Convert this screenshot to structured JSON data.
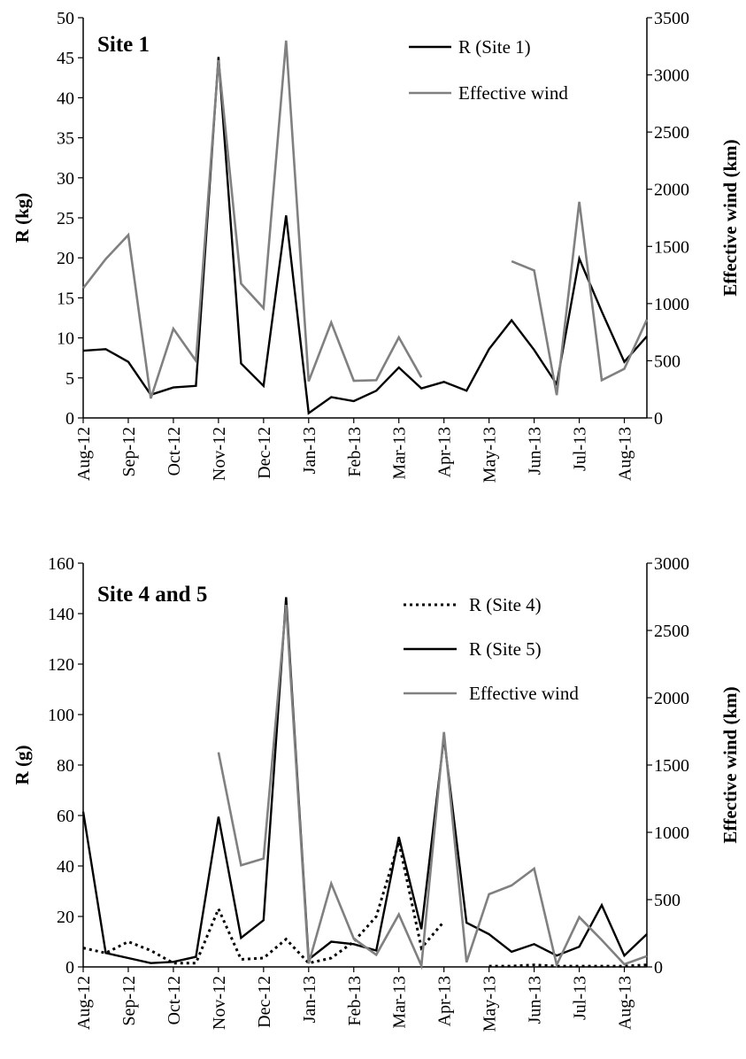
{
  "chart_data": [
    {
      "type": "line",
      "title": "Site 1",
      "ylabel": "R (kg)",
      "y2label": "Effective wind (km)",
      "ylim": [
        0,
        50
      ],
      "y2lim": [
        0,
        3500
      ],
      "yticks": [
        0,
        5,
        10,
        15,
        20,
        25,
        30,
        35,
        40,
        45,
        50
      ],
      "y2ticks": [
        0,
        500,
        1000,
        1500,
        2000,
        2500,
        3000,
        3500
      ],
      "x_tick_labels": [
        "Aug-12",
        "Sep-12",
        "Oct-12",
        "Nov-12",
        "Dec-12",
        "Jan-13",
        "Feb-13",
        "Mar-13",
        "Apr-13",
        "May-13",
        "Jun-13",
        "Jul-13",
        "Aug-13"
      ],
      "x_domain": [
        0,
        25
      ],
      "grid": false,
      "legend_position": "top-right",
      "series": [
        {
          "name": "R (Site 1)",
          "axis": "left",
          "color": "#000000",
          "dash": "solid",
          "x": [
            0,
            1,
            2,
            3,
            4,
            5,
            6,
            7,
            8,
            9,
            10,
            11,
            12,
            13,
            14,
            15,
            16,
            17,
            18,
            19,
            20,
            21,
            22,
            23,
            24,
            25
          ],
          "values": [
            8.4,
            8.6,
            7.0,
            2.9,
            3.8,
            4.0,
            45.1,
            6.8,
            4.0,
            25.3,
            0.6,
            2.6,
            2.1,
            3.4,
            6.3,
            3.7,
            4.5,
            3.4,
            8.6,
            12.2,
            8.5,
            4.2,
            19.9,
            13.3,
            7.0,
            10.2
          ]
        },
        {
          "name": "Effective wind",
          "axis": "right",
          "color": "#808080",
          "dash": "solid",
          "segments": [
            {
              "x": [
                0,
                1,
                2,
                3,
                4,
                5,
                6,
                7,
                8,
                9,
                10,
                11,
                12,
                13,
                14,
                15
              ],
              "values": [
                1135,
                1390,
                1600,
                170,
                780,
                500,
                3130,
                1175,
                960,
                3300,
                320,
                835,
                325,
                330,
                705,
                355
              ]
            },
            {
              "x": [
                19,
                20,
                21,
                22,
                23,
                24,
                25
              ],
              "values": [
                1370,
                1290,
                200,
                1890,
                330,
                430,
                860
              ]
            }
          ]
        }
      ]
    },
    {
      "type": "line",
      "title": "Site 4 and 5",
      "ylabel": "R (g)",
      "y2label": "Effective wind (km)",
      "ylim": [
        0,
        160
      ],
      "y2lim": [
        0,
        3000
      ],
      "yticks": [
        0,
        20,
        40,
        60,
        80,
        100,
        120,
        140,
        160
      ],
      "y2ticks": [
        0,
        500,
        1000,
        1500,
        2000,
        2500,
        3000
      ],
      "x_tick_labels": [
        "Aug-12",
        "Sep-12",
        "Oct-12",
        "Nov-12",
        "Dec-12",
        "Jan-13",
        "Feb-13",
        "Mar-13",
        "Apr-13",
        "May-13",
        "Jun-13",
        "Jul-13",
        "Aug-13"
      ],
      "x_domain": [
        0,
        25
      ],
      "grid": false,
      "legend_position": "top-right",
      "series": [
        {
          "name": "R (Site 4)",
          "axis": "left",
          "color": "#000000",
          "dash": "dotted",
          "segments": [
            {
              "x": [
                0,
                1,
                2,
                3,
                4,
                5,
                6,
                7,
                8,
                9,
                10,
                11,
                12,
                13,
                14,
                15,
                16
              ],
              "values": [
                7.5,
                5.5,
                10.0,
                6.5,
                1.5,
                1.5,
                23.0,
                3.0,
                3.5,
                11.0,
                1.5,
                3.5,
                10.0,
                20.0,
                49.5,
                7.5,
                18.0
              ]
            },
            {
              "x": [
                18,
                19,
                20,
                21,
                22,
                23,
                24,
                25
              ],
              "values": [
                0.3,
                0.3,
                0.8,
                0.3,
                0.3,
                0.3,
                0.3,
                0.8
              ]
            }
          ]
        },
        {
          "name": "R (Site 5)",
          "axis": "left",
          "color": "#000000",
          "dash": "solid",
          "x": [
            0,
            1,
            2,
            3,
            4,
            5,
            6,
            7,
            8,
            9,
            10,
            11,
            12,
            13,
            14,
            15,
            16,
            17,
            18,
            19,
            20,
            21,
            22,
            23,
            24,
            25
          ],
          "values": [
            61.5,
            5.5,
            3.5,
            1.5,
            2.0,
            4.0,
            59.5,
            11.5,
            18.5,
            146.5,
            3.0,
            10.0,
            9.0,
            6.5,
            51.5,
            15.0,
            91.0,
            17.5,
            13.0,
            6.0,
            9.0,
            4.5,
            8.0,
            24.5,
            4.5,
            13.0
          ]
        },
        {
          "name": "Effective wind",
          "axis": "right",
          "color": "#808080",
          "dash": "solid",
          "segments": [
            {
              "x": [
                6,
                7,
                8,
                9,
                10,
                11,
                12,
                13,
                14,
                15,
                16,
                17,
                18,
                19,
                20,
                21,
                22,
                23,
                24,
                25
              ],
              "values": [
                1595,
                755,
                805,
                2690,
                25,
                620,
                210,
                90,
                390,
                10,
                1745,
                35,
                540,
                605,
                730,
                15,
                370,
                200,
                20,
                80
              ]
            }
          ]
        }
      ]
    }
  ]
}
